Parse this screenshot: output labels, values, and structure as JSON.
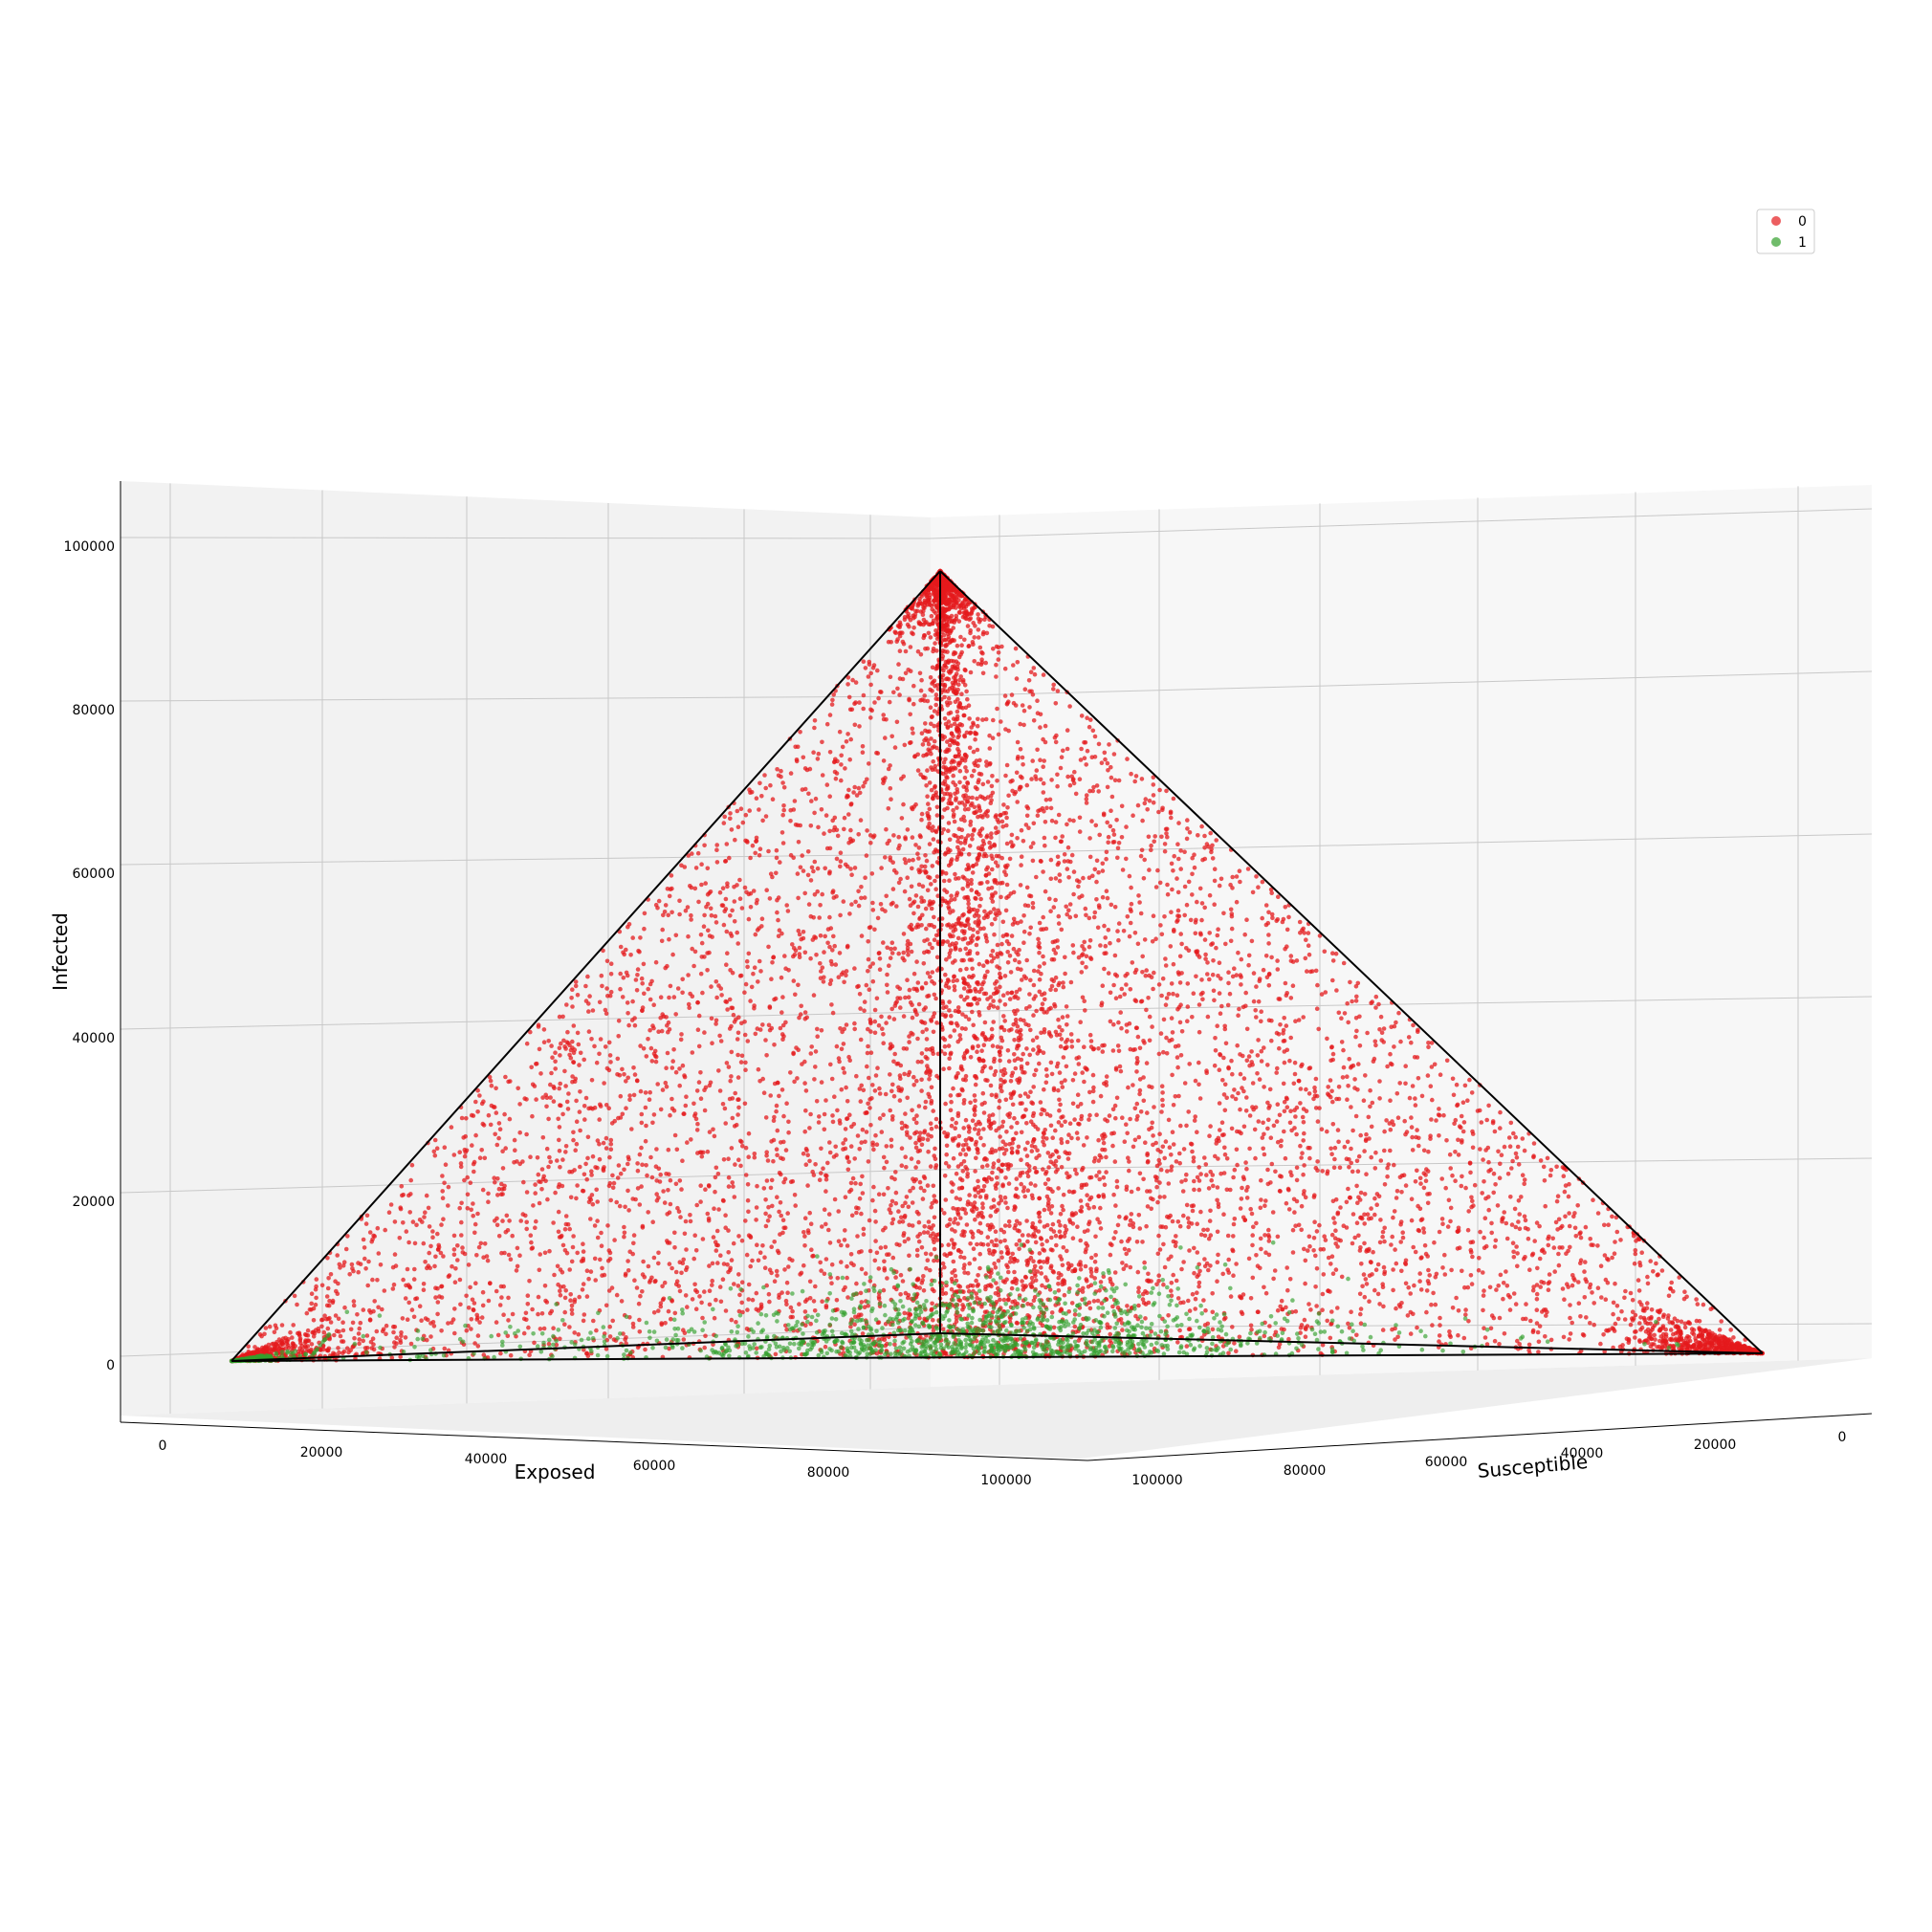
{
  "chart_data": {
    "type": "scatter",
    "projection": "3d",
    "xlabel": "Exposed",
    "ylabel": "Susceptible",
    "zlabel": "Infected",
    "x_ticks": [
      0,
      20000,
      40000,
      60000,
      80000,
      100000
    ],
    "y_ticks": [
      100000,
      80000,
      60000,
      40000,
      20000,
      0
    ],
    "z_ticks": [
      0,
      20000,
      40000,
      60000,
      80000,
      100000
    ],
    "x_tick_labels": [
      "0",
      "20000",
      "40000",
      "60000",
      "80000",
      "100000"
    ],
    "y_tick_labels": [
      "100000",
      "80000",
      "60000",
      "40000",
      "20000",
      "0"
    ],
    "z_tick_labels": [
      "0",
      "20000",
      "40000",
      "60000",
      "80000",
      "100000"
    ],
    "xlim": [
      0,
      100000
    ],
    "ylim": [
      0,
      100000
    ],
    "zlim": [
      0,
      100000
    ],
    "grid": true,
    "simplex_total": 100000,
    "simplex_edges": "black",
    "legend": {
      "placement": "top-right"
    },
    "series": [
      {
        "name": "0",
        "color": "#e41a1c",
        "alpha": 0.75,
        "approx_count": 9000,
        "distribution": "spread over the triangular face Susceptible + Exposed + Infected = 100000, denser near the three corners and along the centre line",
        "sample_points": [
          [
            0,
            0,
            100000
          ],
          [
            2000,
            1000,
            97000
          ],
          [
            1000,
            3000,
            96000
          ],
          [
            92000,
            0,
            8000
          ],
          [
            96000,
            1000,
            3000
          ],
          [
            0,
            97000,
            3000
          ],
          [
            1000,
            94000,
            5000
          ],
          [
            50000,
            45000,
            5000
          ],
          [
            30000,
            30000,
            40000
          ],
          [
            20000,
            25000,
            55000
          ],
          [
            40000,
            10000,
            50000
          ],
          [
            10000,
            50000,
            40000
          ],
          [
            15000,
            15000,
            70000
          ],
          [
            60000,
            20000,
            20000
          ],
          [
            25000,
            60000,
            15000
          ],
          [
            5000,
            5000,
            90000
          ]
        ]
      },
      {
        "name": "1",
        "color": "#33a02c",
        "alpha": 0.65,
        "approx_count": 1500,
        "distribution": "concentrated at low Infected (mostly below 15000), clustered around the centre of the base and at the Exposed corner",
        "sample_points": [
          [
            48000,
            46000,
            6000
          ],
          [
            45000,
            45000,
            10000
          ],
          [
            60000,
            35000,
            5000
          ],
          [
            35000,
            60000,
            5000
          ],
          [
            0,
            99000,
            1000
          ],
          [
            1000,
            97000,
            2000
          ],
          [
            70000,
            27000,
            3000
          ],
          [
            25000,
            72000,
            3000
          ],
          [
            50000,
            42000,
            8000
          ]
        ]
      }
    ]
  }
}
